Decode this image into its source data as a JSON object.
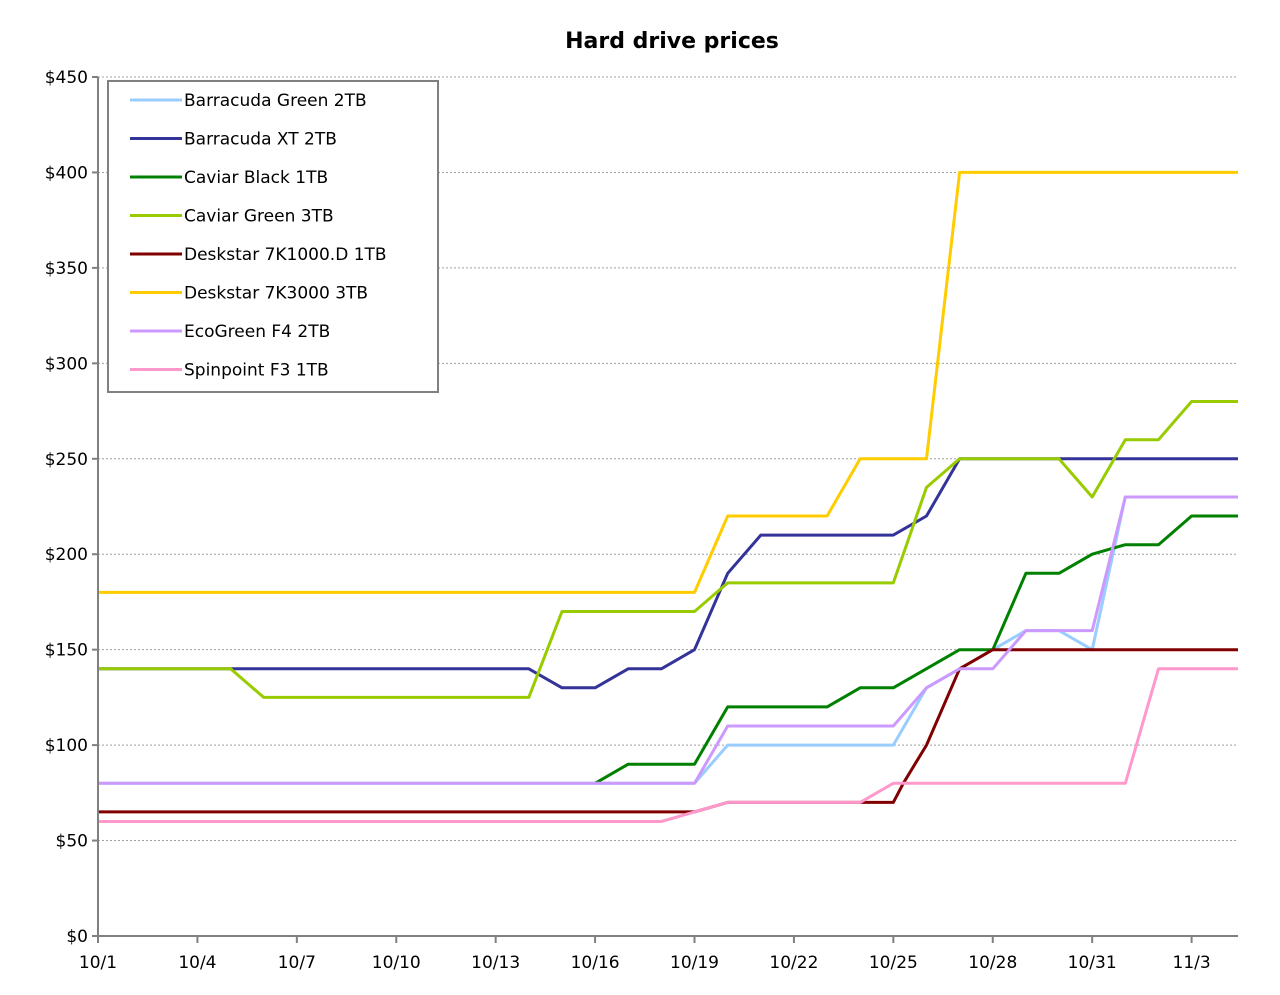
{
  "chart_data": {
    "type": "line",
    "title": "Hard drive prices",
    "xlabel": "",
    "ylabel": "",
    "ylim": [
      0,
      450
    ],
    "xlim": [
      0,
      34.4
    ],
    "grid": true,
    "legend_position": "top-left",
    "y_ticks": [
      {
        "value": 0,
        "label": "$0"
      },
      {
        "value": 50,
        "label": "$50"
      },
      {
        "value": 100,
        "label": "$100"
      },
      {
        "value": 150,
        "label": "$150"
      },
      {
        "value": 200,
        "label": "$200"
      },
      {
        "value": 250,
        "label": "$250"
      },
      {
        "value": 300,
        "label": "$300"
      },
      {
        "value": 350,
        "label": "$350"
      },
      {
        "value": 400,
        "label": "$400"
      },
      {
        "value": 450,
        "label": "$450"
      }
    ],
    "x_ticks": [
      {
        "value": 0,
        "label": "10/1"
      },
      {
        "value": 3,
        "label": "10/4"
      },
      {
        "value": 6,
        "label": "10/7"
      },
      {
        "value": 9,
        "label": "10/10"
      },
      {
        "value": 12,
        "label": "10/13"
      },
      {
        "value": 15,
        "label": "10/16"
      },
      {
        "value": 18,
        "label": "10/19"
      },
      {
        "value": 21,
        "label": "10/22"
      },
      {
        "value": 24,
        "label": "10/25"
      },
      {
        "value": 27,
        "label": "10/28"
      },
      {
        "value": 30,
        "label": "10/31"
      },
      {
        "value": 33,
        "label": "11/3"
      }
    ],
    "series": [
      {
        "name": "Barracuda Green 2TB",
        "color": "#99ccff",
        "points": [
          [
            0,
            80
          ],
          [
            18,
            80
          ],
          [
            19,
            100
          ],
          [
            24,
            100
          ],
          [
            25,
            130
          ],
          [
            26,
            140
          ],
          [
            27,
            150
          ],
          [
            28,
            160
          ],
          [
            29,
            160
          ],
          [
            30,
            150
          ],
          [
            31,
            230
          ],
          [
            34.4,
            230
          ]
        ]
      },
      {
        "name": "Barracuda XT 2TB",
        "color": "#333399",
        "points": [
          [
            0,
            140
          ],
          [
            13,
            140
          ],
          [
            14,
            130
          ],
          [
            15,
            130
          ],
          [
            16,
            140
          ],
          [
            17,
            140
          ],
          [
            18,
            150
          ],
          [
            19,
            190
          ],
          [
            20,
            210
          ],
          [
            24,
            210
          ],
          [
            25,
            220
          ],
          [
            26,
            250
          ],
          [
            34.4,
            250
          ]
        ]
      },
      {
        "name": "Caviar Black 1TB",
        "color": "#008000",
        "points": [
          [
            15,
            80
          ],
          [
            16,
            90
          ],
          [
            18,
            90
          ],
          [
            19,
            120
          ],
          [
            22,
            120
          ],
          [
            23,
            130
          ],
          [
            24,
            130
          ],
          [
            26,
            150
          ],
          [
            27,
            150
          ],
          [
            28,
            190
          ],
          [
            29,
            190
          ],
          [
            30,
            200
          ],
          [
            31,
            205
          ],
          [
            32,
            205
          ],
          [
            33,
            220
          ],
          [
            34.4,
            220
          ]
        ]
      },
      {
        "name": "Caviar Green 3TB",
        "color": "#99cc00",
        "points": [
          [
            0,
            140
          ],
          [
            4,
            140
          ],
          [
            5,
            125
          ],
          [
            13,
            125
          ],
          [
            14,
            170
          ],
          [
            18,
            170
          ],
          [
            19,
            185
          ],
          [
            24,
            185
          ],
          [
            25,
            235
          ],
          [
            26,
            250
          ],
          [
            29,
            250
          ],
          [
            30,
            230
          ],
          [
            31,
            260
          ],
          [
            32,
            260
          ],
          [
            33,
            280
          ],
          [
            34.4,
            280
          ]
        ]
      },
      {
        "name": "Deskstar 7K1000.D 1TB",
        "color": "#800000",
        "points": [
          [
            0,
            65
          ],
          [
            18,
            65
          ],
          [
            19,
            70
          ],
          [
            23,
            70
          ],
          [
            24,
            70
          ],
          [
            24.3,
            80
          ],
          [
            25,
            100
          ],
          [
            26,
            140
          ],
          [
            27,
            150
          ],
          [
            28,
            150
          ],
          [
            29,
            150
          ],
          [
            34.4,
            150
          ]
        ]
      },
      {
        "name": "Deskstar 7K3000 3TB",
        "color": "#ffcc00",
        "points": [
          [
            0,
            180
          ],
          [
            18,
            180
          ],
          [
            19,
            220
          ],
          [
            22,
            220
          ],
          [
            23,
            250
          ],
          [
            25,
            250
          ],
          [
            26,
            400
          ],
          [
            34.4,
            400
          ]
        ]
      },
      {
        "name": "EcoGreen F4 2TB",
        "color": "#cc99ff",
        "points": [
          [
            0,
            80
          ],
          [
            18,
            80
          ],
          [
            19,
            110
          ],
          [
            24,
            110
          ],
          [
            25,
            130
          ],
          [
            26,
            140
          ],
          [
            27,
            140
          ],
          [
            28,
            160
          ],
          [
            30,
            160
          ],
          [
            31,
            230
          ],
          [
            34.4,
            230
          ]
        ]
      },
      {
        "name": "Spinpoint F3 1TB",
        "color": "#ff99cc",
        "points": [
          [
            0,
            60
          ],
          [
            17,
            60
          ],
          [
            18,
            65
          ],
          [
            19,
            70
          ],
          [
            23,
            70
          ],
          [
            24,
            80
          ],
          [
            31,
            80
          ],
          [
            32,
            140
          ],
          [
            34.4,
            140
          ]
        ]
      }
    ]
  }
}
